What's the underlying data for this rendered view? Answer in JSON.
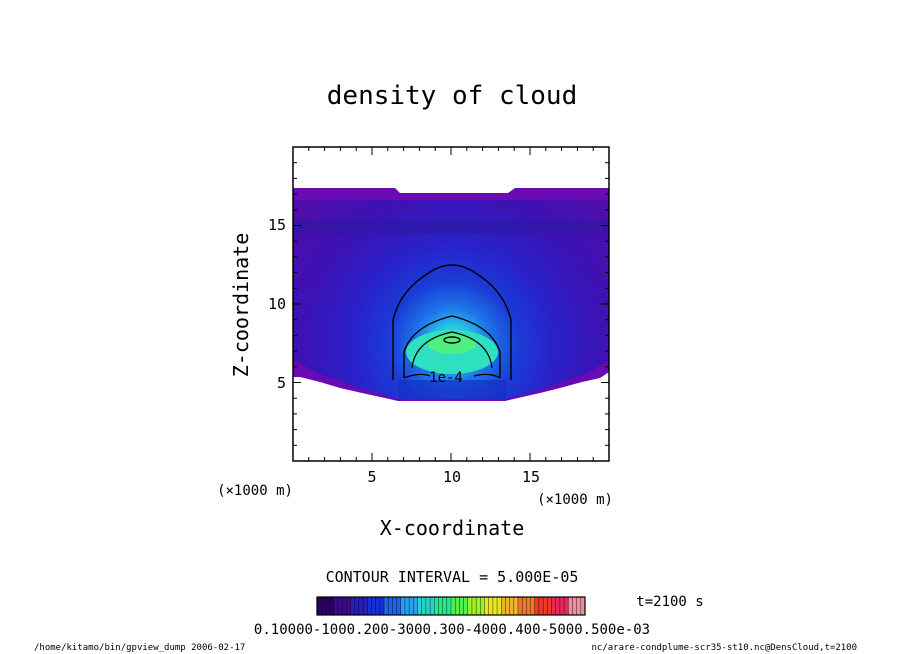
{
  "chart_data": {
    "type": "contour",
    "title": "density of cloud",
    "xlabel": "X-coordinate",
    "ylabel": "Z-coordinate",
    "x_unit": "(×1000 m)",
    "y_unit": "(×1000 m)",
    "xlim": [
      0,
      20
    ],
    "ylim": [
      0,
      20
    ],
    "x_ticks": [
      5,
      10,
      15
    ],
    "y_ticks": [
      5,
      10,
      15
    ],
    "contour_interval_text": "CONTOUR INTERVAL = 5.000E-05",
    "contour_label": "1e-4",
    "contour_levels": [
      5e-05,
      0.0001,
      0.00015,
      0.0002
    ],
    "time_label": "t=2100 s",
    "colorbar": {
      "tick_labels_text": "0.10000-1000.200-3000.300-4000.400-5000.500e-03",
      "colors": [
        "#2d005a",
        "#3a0a8c",
        "#2a1fb4",
        "#1432d2",
        "#1e64e6",
        "#28a0f0",
        "#28d2c8",
        "#28e68c",
        "#50f050",
        "#a0f028",
        "#e6e628",
        "#f0b428",
        "#f07828",
        "#e63c28",
        "#e6285a",
        "#f08ca0"
      ]
    },
    "footer_left": "/home/kitamo/bin/gpview_dump  2006-02-17",
    "footer_right": "nc/arare-condplume-scr35-st10.nc@DensCloud,t=2100"
  }
}
